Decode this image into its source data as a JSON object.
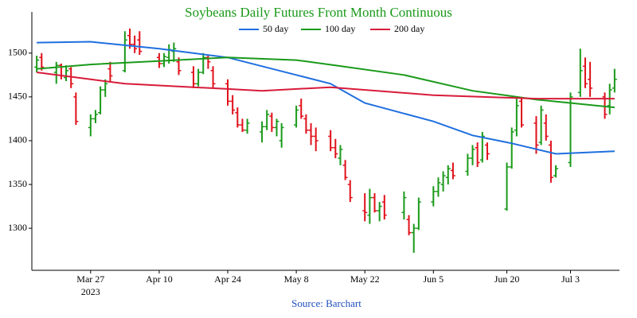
{
  "chart_data": {
    "type": "ohlc",
    "title": "Soybeans Daily Futures Front Month Continuous",
    "title_color": "#1a9a1a",
    "source": "Source: Barchart",
    "source_color": "#1f4fbf",
    "up_color": "#1a9a1a",
    "down_color": "#e0101a",
    "x": [
      "2023-03-16",
      "2023-03-17",
      "2023-03-20",
      "2023-03-21",
      "2023-03-22",
      "2023-03-23",
      "2023-03-24",
      "2023-03-27",
      "2023-03-28",
      "2023-03-29",
      "2023-03-30",
      "2023-03-31",
      "2023-04-03",
      "2023-04-04",
      "2023-04-05",
      "2023-04-06",
      "2023-04-10",
      "2023-04-11",
      "2023-04-12",
      "2023-04-13",
      "2023-04-14",
      "2023-04-17",
      "2023-04-18",
      "2023-04-19",
      "2023-04-20",
      "2023-04-21",
      "2023-04-24",
      "2023-04-25",
      "2023-04-26",
      "2023-04-27",
      "2023-04-28",
      "2023-05-01",
      "2023-05-02",
      "2023-05-03",
      "2023-05-04",
      "2023-05-05",
      "2023-05-08",
      "2023-05-09",
      "2023-05-10",
      "2023-05-11",
      "2023-05-12",
      "2023-05-15",
      "2023-05-16",
      "2023-05-17",
      "2023-05-18",
      "2023-05-19",
      "2023-05-22",
      "2023-05-23",
      "2023-05-24",
      "2023-05-25",
      "2023-05-26",
      "2023-05-30",
      "2023-05-31",
      "2023-06-01",
      "2023-06-02",
      "2023-06-05",
      "2023-06-06",
      "2023-06-07",
      "2023-06-08",
      "2023-06-09",
      "2023-06-12",
      "2023-06-13",
      "2023-06-14",
      "2023-06-15",
      "2023-06-16",
      "2023-06-20",
      "2023-06-21",
      "2023-06-22",
      "2023-06-23",
      "2023-06-26",
      "2023-06-27",
      "2023-06-28",
      "2023-06-29",
      "2023-06-30",
      "2023-07-03",
      "2023-07-05",
      "2023-07-06",
      "2023-07-07",
      "2023-07-10",
      "2023-07-11",
      "2023-07-12"
    ],
    "open": [
      1484,
      1495,
      1478,
      1486,
      1472,
      1482,
      1450,
      1415,
      1425,
      1432,
      1458,
      1482,
      1480,
      1520,
      1510,
      1515,
      1495,
      1488,
      1495,
      1502,
      1490,
      1478,
      1465,
      1478,
      1495,
      1480,
      1465,
      1445,
      1432,
      1418,
      1412,
      1410,
      1416,
      1428,
      1415,
      1400,
      1418,
      1440,
      1425,
      1412,
      1405,
      1405,
      1392,
      1380,
      1372,
      1350,
      1320,
      1315,
      1335,
      1320,
      1330,
      1318,
      1310,
      1295,
      1300,
      1330,
      1342,
      1350,
      1358,
      1366,
      1365,
      1380,
      1392,
      1378,
      1395,
      1322,
      1370,
      1412,
      1445,
      1420,
      1398,
      1420,
      1395,
      1360,
      1375,
      1455,
      1485,
      1470,
      1450,
      1440,
      1460
    ],
    "high": [
      1497,
      1500,
      1490,
      1488,
      1486,
      1484,
      1455,
      1430,
      1435,
      1462,
      1470,
      1490,
      1525,
      1528,
      1520,
      1525,
      1500,
      1500,
      1510,
      1512,
      1495,
      1485,
      1482,
      1500,
      1498,
      1485,
      1470,
      1452,
      1438,
      1425,
      1425,
      1422,
      1435,
      1432,
      1425,
      1420,
      1440,
      1448,
      1430,
      1420,
      1415,
      1412,
      1402,
      1395,
      1378,
      1355,
      1340,
      1345,
      1340,
      1330,
      1338,
      1342,
      1315,
      1305,
      1335,
      1348,
      1358,
      1365,
      1372,
      1375,
      1385,
      1395,
      1398,
      1410,
      1398,
      1375,
      1415,
      1448,
      1448,
      1428,
      1440,
      1430,
      1400,
      1372,
      1455,
      1505,
      1495,
      1490,
      1455,
      1465,
      1482
    ],
    "low": [
      1478,
      1480,
      1465,
      1470,
      1468,
      1460,
      1418,
      1405,
      1420,
      1430,
      1450,
      1468,
      1478,
      1505,
      1500,
      1498,
      1483,
      1484,
      1488,
      1490,
      1475,
      1460,
      1462,
      1476,
      1482,
      1460,
      1440,
      1430,
      1415,
      1410,
      1408,
      1398,
      1412,
      1410,
      1405,
      1392,
      1415,
      1425,
      1408,
      1395,
      1388,
      1388,
      1380,
      1372,
      1355,
      1330,
      1308,
      1305,
      1318,
      1308,
      1310,
      1310,
      1292,
      1272,
      1298,
      1325,
      1336,
      1342,
      1350,
      1356,
      1360,
      1372,
      1370,
      1375,
      1378,
      1320,
      1368,
      1405,
      1415,
      1385,
      1395,
      1400,
      1352,
      1358,
      1370,
      1450,
      1460,
      1450,
      1425,
      1430,
      1455
    ],
    "close": [
      1492,
      1484,
      1486,
      1474,
      1480,
      1465,
      1422,
      1425,
      1430,
      1458,
      1465,
      1474,
      1515,
      1510,
      1505,
      1502,
      1488,
      1496,
      1504,
      1505,
      1480,
      1465,
      1478,
      1495,
      1490,
      1465,
      1445,
      1435,
      1418,
      1412,
      1420,
      1416,
      1430,
      1415,
      1422,
      1415,
      1435,
      1428,
      1412,
      1405,
      1400,
      1392,
      1385,
      1390,
      1358,
      1335,
      1318,
      1335,
      1320,
      1325,
      1315,
      1335,
      1295,
      1300,
      1330,
      1342,
      1352,
      1360,
      1368,
      1360,
      1380,
      1390,
      1375,
      1405,
      1385,
      1370,
      1410,
      1440,
      1418,
      1395,
      1435,
      1405,
      1358,
      1368,
      1450,
      1480,
      1465,
      1460,
      1430,
      1458,
      1470
    ],
    "series": [
      {
        "name": "50 day",
        "color": "#1f6fdf",
        "x": [
          "2023-03-16",
          "2023-03-27",
          "2023-04-10",
          "2023-04-24",
          "2023-05-08",
          "2023-05-15",
          "2023-05-22",
          "2023-06-05",
          "2023-06-13",
          "2023-06-21",
          "2023-06-30",
          "2023-07-12"
        ],
        "values": [
          1512,
          1513,
          1505,
          1495,
          1475,
          1465,
          1443,
          1422,
          1406,
          1397,
          1385,
          1388
        ]
      },
      {
        "name": "100 day",
        "color": "#1a9a1a",
        "x": [
          "2023-03-16",
          "2023-03-27",
          "2023-04-10",
          "2023-04-24",
          "2023-05-08",
          "2023-05-16",
          "2023-05-30",
          "2023-06-13",
          "2023-06-26",
          "2023-07-12"
        ],
        "values": [
          1482,
          1487,
          1491,
          1495,
          1492,
          1486,
          1475,
          1457,
          1447,
          1438
        ]
      },
      {
        "name": "200 day",
        "color": "#d81b3a",
        "x": [
          "2023-03-16",
          "2023-03-27",
          "2023-04-03",
          "2023-04-24",
          "2023-05-01",
          "2023-05-15",
          "2023-06-05",
          "2023-06-26",
          "2023-07-12"
        ],
        "values": [
          1478,
          1470,
          1465,
          1459,
          1457,
          1461,
          1452,
          1448,
          1448
        ]
      }
    ],
    "xlim": [
      "2023-03-15",
      "2023-07-13"
    ],
    "xticks": [
      {
        "value": "2023-03-27",
        "label": "Mar 27"
      },
      {
        "value": "2023-04-10",
        "label": "Apr 10"
      },
      {
        "value": "2023-04-24",
        "label": "Apr 24"
      },
      {
        "value": "2023-05-08",
        "label": "May 8"
      },
      {
        "value": "2023-05-22",
        "label": "May 22"
      },
      {
        "value": "2023-06-05",
        "label": "Jun 5"
      },
      {
        "value": "2023-06-20",
        "label": "Jun 20"
      },
      {
        "value": "2023-07-03",
        "label": "Jul 3"
      }
    ],
    "x_year_label": "2023",
    "ylim": [
      1252,
      1547
    ],
    "yticks": [
      1300,
      1350,
      1400,
      1450,
      1500
    ],
    "grid": false
  }
}
